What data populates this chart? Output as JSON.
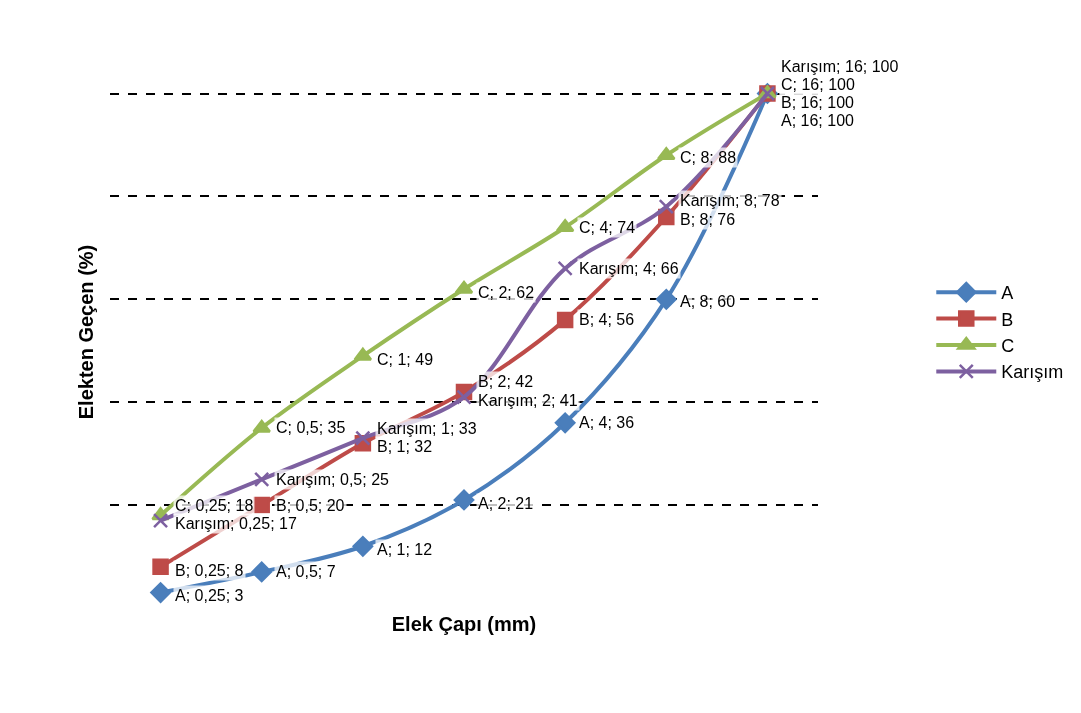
{
  "chart_data": {
    "type": "line",
    "xlabel": "Elek Çapı (mm)",
    "ylabel": "Elekten Geçen (%)",
    "categories": [
      null,
      null,
      null,
      null,
      null,
      null,
      null
    ],
    "tick_labels": false,
    "grid": "y",
    "legend": "right",
    "series": [
      {
        "name": "A",
        "color": "#4a7ebb",
        "marker": "diamond",
        "values": [
          3,
          7,
          12,
          21,
          36,
          60,
          100
        ],
        "value_labels": [
          "A; 0,25; 3",
          "A; 0,5; 7",
          "A; 1; 12",
          "A; 2; 21",
          "A; 4; 36",
          "A; 8; 60",
          "A; 16; 100"
        ]
      },
      {
        "name": "B",
        "color": "#be4b48",
        "marker": "square",
        "values": [
          8,
          20,
          32,
          42,
          56,
          76,
          100
        ],
        "value_labels": [
          "B; 0,25; 8",
          "B; 0,5; 20",
          "B; 1; 32",
          "B; 2; 42",
          "B; 4; 56",
          "B; 8; 76",
          "B; 16; 100"
        ]
      },
      {
        "name": "C",
        "color": "#98b954",
        "marker": "triangle",
        "values": [
          18,
          35,
          49,
          62,
          74,
          88,
          100
        ],
        "value_labels": [
          "C; 0,25; 18",
          "C; 0,5; 35",
          "C; 1; 49",
          "C; 2; 62",
          "C; 4; 74",
          "C; 8; 88",
          "C; 16; 100"
        ]
      },
      {
        "name": "Karışım",
        "color": "#7d60a0",
        "marker": "cross",
        "values": [
          17,
          25,
          33,
          41,
          66,
          78,
          100
        ],
        "value_labels": [
          "Karışım; 0,25; 17",
          "Karışım; 0,5; 25",
          "Karışım; 1; 33",
          "Karışım; 2; 41",
          "Karışım; 4; 66",
          "Karışım; 8; 78",
          "Karışım; 16; 100"
        ]
      }
    ]
  }
}
